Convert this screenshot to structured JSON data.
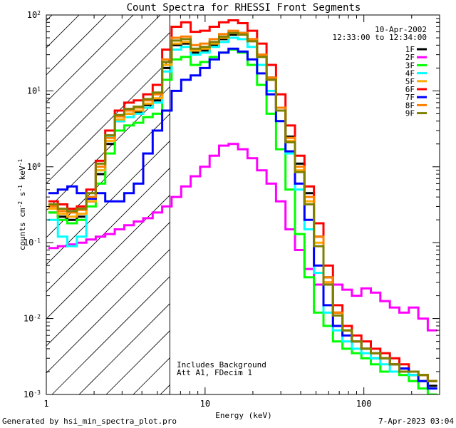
{
  "chart_data": {
    "type": "line",
    "title": "Count Spectra for RHESSI Front Segments",
    "xlabel": "Energy (keV)",
    "ylabel": "counts cm^-2 s^-1 keV^-1",
    "ylabel_parts": {
      "a": "counts cm",
      "b": "-2",
      "c": " s",
      "d": "-1",
      "e": " keV",
      "f": "-1"
    },
    "x_scale": "log",
    "y_scale": "log",
    "xlim": [
      1,
      300
    ],
    "ylim": [
      0.001,
      100
    ],
    "x_ticks": [
      {
        "v": 1,
        "label": "1"
      },
      {
        "v": 10,
        "label": "10"
      },
      {
        "v": 100,
        "label": "100"
      }
    ],
    "y_ticks": [
      {
        "v": 0.001,
        "base": "10",
        "exp": "-3"
      },
      {
        "v": 0.01,
        "base": "10",
        "exp": "-2"
      },
      {
        "v": 0.1,
        "base": "10",
        "exp": "-1"
      },
      {
        "v": 1,
        "base": "10",
        "exp": "0"
      },
      {
        "v": 10,
        "base": "10",
        "exp": "1"
      },
      {
        "v": 100,
        "base": "10",
        "exp": "2"
      }
    ],
    "shaded_region": {
      "x": [
        1,
        6
      ],
      "style": "diagonal hatch"
    },
    "vertical_line": {
      "x": 6
    },
    "date": "10-Apr-2002",
    "time_range": "12:33:00 to 12:34:00",
    "annotation_line1": "Includes Background",
    "annotation_line2": "Att A1, FDecim 1",
    "footer_left": "Generated by hsi_min_spectra_plot.pro",
    "footer_right": "7-Apr-2023 03:04",
    "series": [
      {
        "name": "1F",
        "color": "#000000",
        "values": [
          0.25,
          0.22,
          0.2,
          0.22,
          0.35,
          0.8,
          2.0,
          4.0,
          5.0,
          5.2,
          6.5,
          7.5,
          20,
          40,
          42,
          32,
          34,
          40,
          48,
          55,
          58,
          48,
          30,
          15,
          6,
          2.5,
          1.1,
          0.45,
          0.12,
          0.035,
          0.012,
          0.007,
          0.005,
          0.004,
          0.003,
          0.003,
          0.0025,
          0.0022,
          0.0018,
          0.0015,
          0.0013
        ]
      },
      {
        "name": "2F",
        "color": "#ff00ff",
        "values": [
          0.085,
          0.09,
          0.095,
          0.1,
          0.11,
          0.12,
          0.13,
          0.15,
          0.17,
          0.19,
          0.21,
          0.25,
          0.3,
          0.4,
          0.55,
          0.75,
          1.0,
          1.4,
          1.9,
          2.0,
          1.7,
          1.3,
          0.9,
          0.6,
          0.35,
          0.15,
          0.08,
          0.045,
          0.028,
          0.03,
          0.028,
          0.024,
          0.02,
          0.025,
          0.022,
          0.017,
          0.014,
          0.012,
          0.014,
          0.01,
          0.007
        ]
      },
      {
        "name": "3F",
        "color": "#00ff00",
        "values": [
          0.25,
          0.2,
          0.18,
          0.2,
          0.3,
          0.6,
          1.5,
          3.0,
          3.5,
          3.8,
          4.5,
          5.0,
          14,
          26,
          28,
          22,
          24,
          28,
          32,
          35,
          32,
          22,
          12,
          5,
          1.7,
          0.5,
          0.13,
          0.035,
          0.012,
          0.008,
          0.005,
          0.004,
          0.0035,
          0.003,
          0.0025,
          0.002,
          0.002,
          0.0018,
          0.0015,
          0.0012,
          0.001
        ]
      },
      {
        "name": "4F",
        "color": "#00ffff",
        "values": [
          0.2,
          0.12,
          0.09,
          0.12,
          0.4,
          0.9,
          2.5,
          4.0,
          4.5,
          5.0,
          6.0,
          7.0,
          18,
          35,
          38,
          30,
          32,
          38,
          44,
          50,
          48,
          38,
          22,
          10,
          4,
          1.5,
          0.5,
          0.15,
          0.04,
          0.012,
          0.007,
          0.005,
          0.004,
          0.0035,
          0.003,
          0.0025,
          0.002,
          0.002,
          0.0018,
          0.0015,
          0.0012
        ]
      },
      {
        "name": "5F",
        "color": "#ffaa00",
        "values": [
          0.28,
          0.24,
          0.22,
          0.24,
          0.35,
          0.9,
          2.2,
          4.2,
          5.0,
          5.5,
          6.8,
          8.0,
          22,
          42,
          44,
          34,
          36,
          42,
          50,
          58,
          56,
          46,
          28,
          14,
          5.5,
          2.2,
          0.9,
          0.35,
          0.1,
          0.03,
          0.012,
          0.007,
          0.005,
          0.004,
          0.0035,
          0.003,
          0.0025,
          0.002,
          0.002,
          0.0018,
          0.0015
        ]
      },
      {
        "name": "6F",
        "color": "#ff0000",
        "values": [
          0.35,
          0.32,
          0.28,
          0.3,
          0.5,
          1.2,
          3.0,
          5.5,
          7.0,
          7.5,
          9.0,
          12,
          35,
          70,
          80,
          60,
          62,
          70,
          80,
          85,
          78,
          62,
          42,
          22,
          9,
          3.5,
          1.4,
          0.55,
          0.18,
          0.05,
          0.015,
          0.008,
          0.006,
          0.005,
          0.004,
          0.0035,
          0.003,
          0.0025,
          0.002,
          0.0018,
          0.0015
        ]
      },
      {
        "name": "7F",
        "color": "#0000ff",
        "values": [
          0.45,
          0.5,
          0.55,
          0.45,
          0.38,
          0.45,
          0.35,
          0.35,
          0.45,
          0.6,
          1.5,
          3.0,
          5.5,
          10,
          14,
          16,
          20,
          26,
          32,
          36,
          33,
          26,
          17,
          9,
          4,
          1.6,
          0.6,
          0.2,
          0.05,
          0.015,
          0.008,
          0.006,
          0.005,
          0.004,
          0.0035,
          0.003,
          0.0025,
          0.0022,
          0.002,
          0.0015,
          0.0012
        ]
      },
      {
        "name": "8F",
        "color": "#ff7f00",
        "values": [
          0.3,
          0.26,
          0.25,
          0.27,
          0.4,
          1.0,
          2.4,
          4.6,
          5.5,
          6.0,
          7.5,
          9.0,
          26,
          50,
          52,
          40,
          42,
          48,
          56,
          62,
          58,
          48,
          30,
          15,
          6,
          2.4,
          1.0,
          0.4,
          0.12,
          0.035,
          0.012,
          0.007,
          0.005,
          0.004,
          0.0035,
          0.003,
          0.0025,
          0.002,
          0.002,
          0.0018,
          0.0015
        ]
      },
      {
        "name": "9F",
        "color": "#7f7f00",
        "values": [
          0.32,
          0.28,
          0.26,
          0.28,
          0.45,
          1.1,
          2.6,
          4.8,
          5.8,
          6.2,
          7.8,
          9.5,
          24,
          46,
          48,
          36,
          38,
          44,
          52,
          58,
          55,
          45,
          28,
          14,
          5.5,
          2.1,
          0.85,
          0.32,
          0.09,
          0.028,
          0.011,
          0.007,
          0.005,
          0.004,
          0.0035,
          0.003,
          0.0025,
          0.002,
          0.002,
          0.0018,
          0.0015
        ]
      }
    ]
  }
}
